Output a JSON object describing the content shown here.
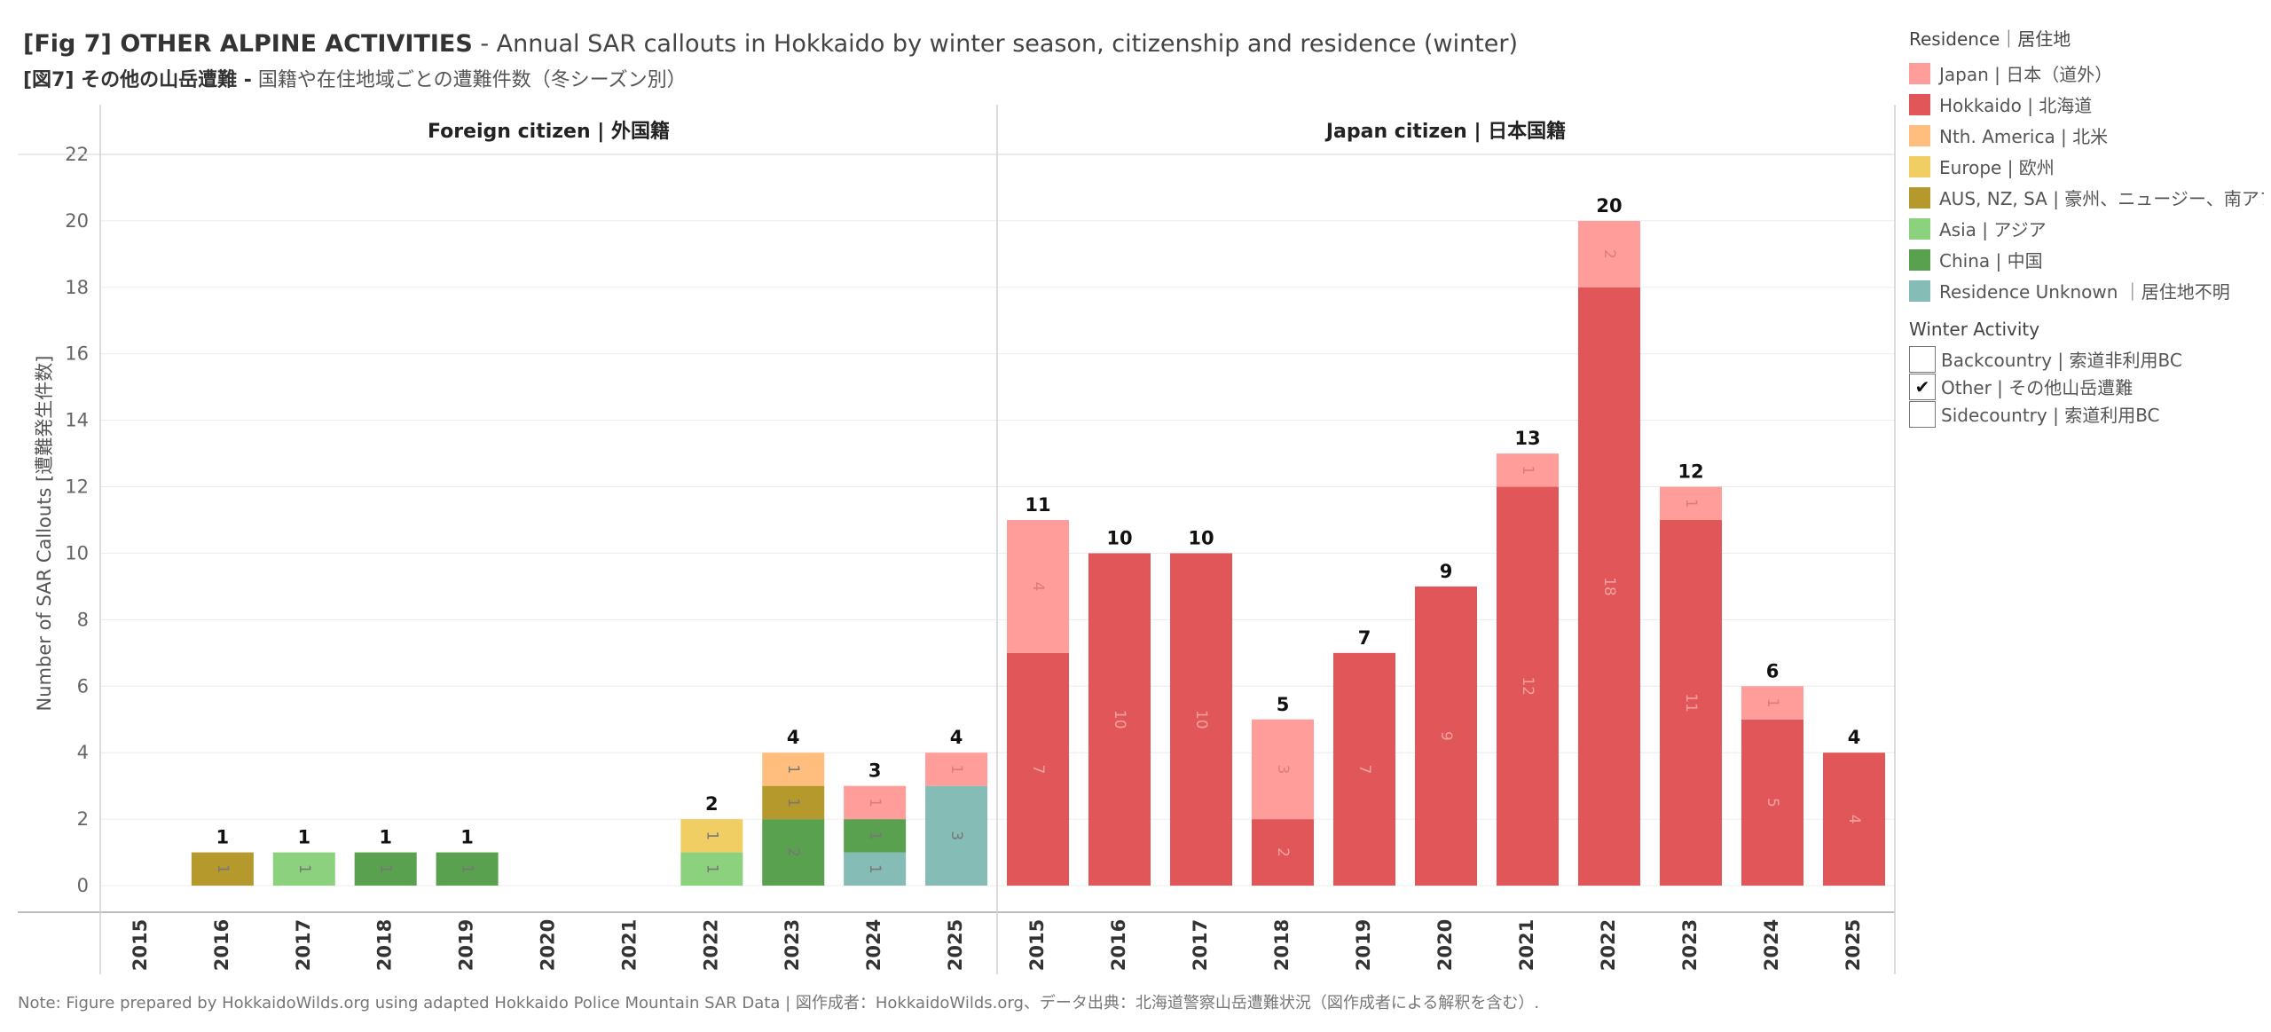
{
  "title": {
    "fig_label": "[Fig 7]",
    "bold_part": "OTHER ALPINE ACTIVITIES",
    "rest": " - Annual SAR callouts in Hokkaido by winter season, citizenship and residence (winter)",
    "jp_fig_label": "[図7]",
    "jp_bold_part": "その他の山岳遭難 -",
    "jp_rest": " 国籍や在住地域ごとの遭難件数（冬シーズン別）"
  },
  "legend": {
    "title": "Residence｜居住地",
    "items": [
      {
        "key": "japan",
        "label": "Japan | 日本（道外）",
        "color": "#FF9D9A"
      },
      {
        "key": "hokkaido",
        "label": "Hokkaido | 北海道",
        "color": "#E15759"
      },
      {
        "key": "namerica",
        "label": "Nth. America | 北米",
        "color": "#FFBE7D"
      },
      {
        "key": "europe",
        "label": "Europe | 欧州",
        "color": "#F1CE63"
      },
      {
        "key": "aus",
        "label": "AUS, NZ, SA | 豪州、ニュージー、南アフ..",
        "color": "#B6992D"
      },
      {
        "key": "asia",
        "label": "Asia | アジア",
        "color": "#8CD17D"
      },
      {
        "key": "china",
        "label": "China | 中国",
        "color": "#59A14F"
      },
      {
        "key": "unknown",
        "label": "Residence Unknown ｜居住地不明",
        "color": "#86BCB6"
      }
    ]
  },
  "filter": {
    "title": "Winter Activity",
    "options": [
      {
        "label": "Backcountry | 索道非利用BC",
        "checked": false
      },
      {
        "label": "Other | その他山岳遭難",
        "checked": true
      },
      {
        "label": "Sidecountry | 索道利用BC",
        "checked": false
      }
    ],
    "check_mark": "✔"
  },
  "note": "Note: Figure prepared by HokkaidoWilds.org using adapted Hokkaido Police Mountain SAR Data | 図作成者：HokkaidoWilds.org、データ出典：北海道警察山岳遭難状況（図作成者による解釈を含む）.",
  "chart_data": {
    "type": "bar",
    "stacked": true,
    "ylabel": "Number of SAR Callouts [遭難発生件数]",
    "ylim": [
      -0.8,
      22
    ],
    "yticks": [
      0,
      2,
      4,
      6,
      8,
      10,
      12,
      14,
      16,
      18,
      20,
      22
    ],
    "stack_order": [
      "unknown",
      "china",
      "asia",
      "aus",
      "europe",
      "namerica",
      "hokkaido",
      "japan"
    ],
    "panels": [
      {
        "title": "Foreign citizen | 外国籍",
        "categories": [
          "2015",
          "2016",
          "2017",
          "2018",
          "2019",
          "2020",
          "2021",
          "2022",
          "2023",
          "2024",
          "2025"
        ],
        "totals": [
          0,
          1,
          1,
          1,
          1,
          0,
          0,
          2,
          4,
          3,
          4
        ],
        "series": {
          "aus": [
            0,
            1,
            0,
            0,
            0,
            0,
            0,
            0,
            1,
            0,
            0
          ],
          "asia": [
            0,
            0,
            1,
            0,
            0,
            0,
            0,
            1,
            0,
            0,
            0
          ],
          "china": [
            0,
            0,
            0,
            1,
            1,
            0,
            0,
            0,
            2,
            1,
            0
          ],
          "europe": [
            0,
            0,
            0,
            0,
            0,
            0,
            0,
            1,
            0,
            0,
            0
          ],
          "namerica": [
            0,
            0,
            0,
            0,
            0,
            0,
            0,
            0,
            1,
            0,
            0
          ],
          "japan": [
            0,
            0,
            0,
            0,
            0,
            0,
            0,
            0,
            0,
            1,
            1
          ],
          "unknown": [
            0,
            0,
            0,
            0,
            0,
            0,
            0,
            0,
            0,
            1,
            3
          ],
          "hokkaido": [
            0,
            0,
            0,
            0,
            0,
            0,
            0,
            0,
            0,
            0,
            0
          ]
        }
      },
      {
        "title": "Japan citizen | 日本国籍",
        "categories": [
          "2015",
          "2016",
          "2017",
          "2018",
          "2019",
          "2020",
          "2021",
          "2022",
          "2023",
          "2024",
          "2025"
        ],
        "totals": [
          11,
          10,
          10,
          5,
          7,
          9,
          13,
          20,
          12,
          6,
          4
        ],
        "series": {
          "hokkaido": [
            7,
            10,
            10,
            2,
            7,
            9,
            12,
            18,
            11,
            5,
            4
          ],
          "japan": [
            4,
            0,
            0,
            3,
            0,
            0,
            1,
            2,
            1,
            1,
            0
          ]
        }
      }
    ]
  }
}
